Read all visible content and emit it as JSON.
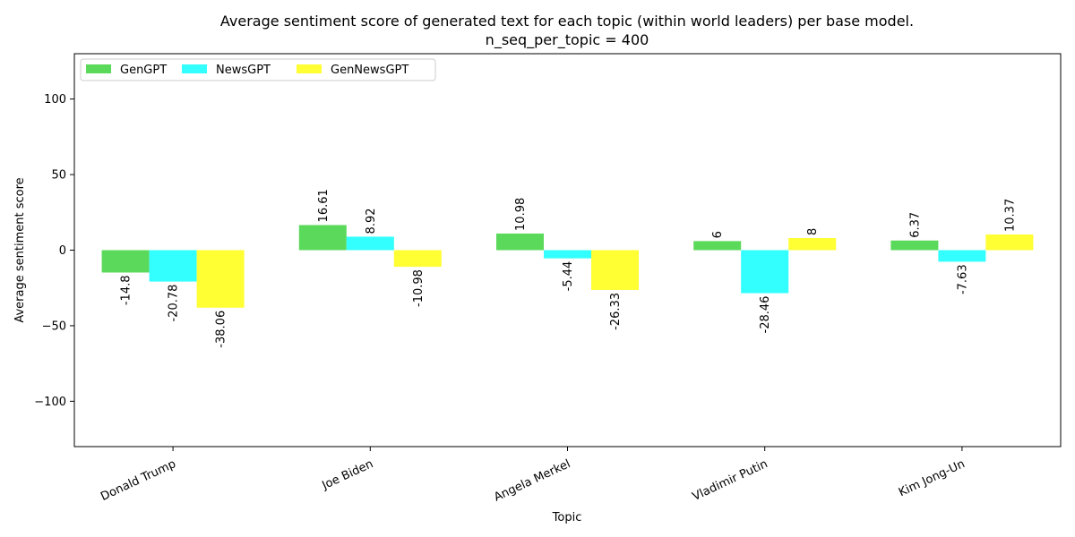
{
  "chart_data": {
    "type": "bar",
    "title": "Average sentiment score of generated text for each topic (within world leaders) per base model.",
    "subtitle": "n_seq_per_topic = 400",
    "xlabel": "Topic",
    "ylabel": "Average sentiment score",
    "ylim": [
      -130,
      130
    ],
    "yticks": [
      -100,
      -50,
      0,
      50,
      100
    ],
    "categories": [
      "Donald Trump",
      "Joe Biden",
      "Angela Merkel",
      "Vladimir Putin",
      "Kim Jong-Un"
    ],
    "series": [
      {
        "name": "GenGPT",
        "color": "#5bd95b",
        "values": [
          -14.8,
          16.61,
          10.98,
          6,
          6.37
        ],
        "labels": [
          "-14.8",
          "16.61",
          "10.98",
          "6",
          "6.37"
        ]
      },
      {
        "name": "NewsGPT",
        "color": "#33ffff",
        "values": [
          -20.78,
          8.92,
          -5.44,
          -28.46,
          -7.63
        ],
        "labels": [
          "-20.78",
          "8.92",
          "-5.44",
          "-28.46",
          "-7.63"
        ]
      },
      {
        "name": "GenNewsGPT",
        "color": "#ffff33",
        "values": [
          -38.06,
          -10.98,
          -26.33,
          8,
          10.37
        ],
        "labels": [
          "-38.06",
          "-10.98",
          "-26.33",
          "8",
          "10.37"
        ]
      }
    ],
    "grid": false,
    "legend_position": "top-left"
  }
}
